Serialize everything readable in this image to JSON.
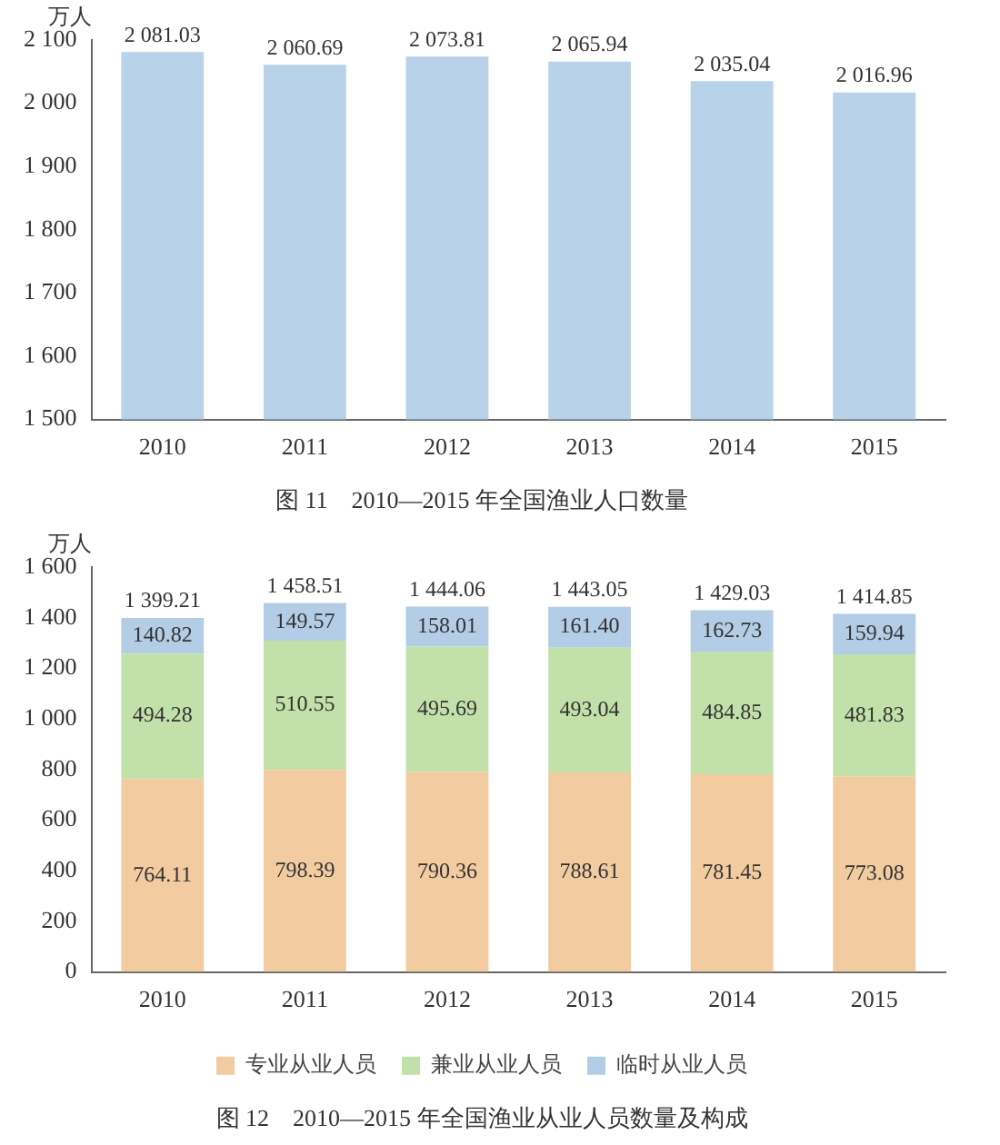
{
  "chart_data": [
    {
      "type": "bar",
      "title": "图 11　2010—2015 年全国渔业人口数量",
      "ylabel": "万人",
      "categories": [
        "2010",
        "2011",
        "2012",
        "2013",
        "2014",
        "2015"
      ],
      "values": [
        2081.03,
        2060.69,
        2073.81,
        2065.94,
        2035.04,
        2016.96
      ],
      "value_labels": [
        "2 081.03",
        "2 060.69",
        "2 073.81",
        "2 065.94",
        "2 035.04",
        "2 016.96"
      ],
      "color": "#b8d2ea",
      "ylim": [
        1500,
        2100
      ],
      "yticks": [
        {
          "value": 1500,
          "label": "1 500"
        },
        {
          "value": 1600,
          "label": "1 600"
        },
        {
          "value": 1700,
          "label": "1 700"
        },
        {
          "value": 1800,
          "label": "1 800"
        },
        {
          "value": 1900,
          "label": "1 900"
        },
        {
          "value": 2000,
          "label": "2 000"
        },
        {
          "value": 2100,
          "label": "2 100"
        }
      ],
      "grid": false,
      "legend": false
    },
    {
      "type": "bar",
      "title": "图 12　2010—2015 年全国渔业从业人员数量及构成",
      "ylabel": "万人",
      "stacked": true,
      "categories": [
        "2010",
        "2011",
        "2012",
        "2013",
        "2014",
        "2015"
      ],
      "series": [
        {
          "name": "专业从业人员",
          "color": "#f2cba0",
          "values": [
            764.11,
            798.39,
            790.36,
            788.61,
            781.45,
            773.08
          ],
          "value_labels": [
            "764.11",
            "798.39",
            "790.36",
            "788.61",
            "781.45",
            "773.08"
          ]
        },
        {
          "name": "兼业从业人员",
          "color": "#c2e0a9",
          "values": [
            494.28,
            510.55,
            495.69,
            493.04,
            484.85,
            481.83
          ],
          "value_labels": [
            "494.28",
            "510.55",
            "495.69",
            "493.04",
            "484.85",
            "481.83"
          ]
        },
        {
          "name": "临时从业人员",
          "color": "#b3cde6",
          "values": [
            140.82,
            149.57,
            158.01,
            161.4,
            162.73,
            159.94
          ],
          "value_labels": [
            "140.82",
            "149.57",
            "158.01",
            "161.40",
            "162.73",
            "159.94"
          ]
        }
      ],
      "totals": [
        "1 399.21",
        "1 458.51",
        "1 444.06",
        "1 443.05",
        "1 429.03",
        "1 414.85"
      ],
      "ylim": [
        0,
        1600
      ],
      "yticks": [
        0,
        200,
        400,
        600,
        800,
        {
          "value": 1000,
          "label": "1 000"
        },
        {
          "value": 1200,
          "label": "1 200"
        },
        {
          "value": 1400,
          "label": "1 400"
        },
        {
          "value": 1600,
          "label": "1 600"
        }
      ],
      "grid": false,
      "legend": "bottom"
    }
  ]
}
